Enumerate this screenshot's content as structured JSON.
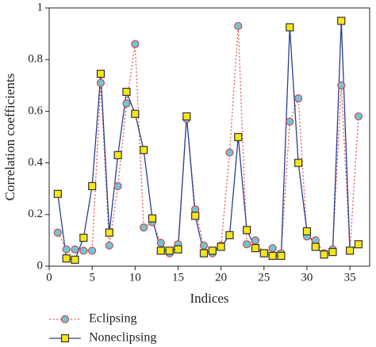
{
  "chart_data": {
    "type": "line",
    "xlabel": "Indices",
    "ylabel": "Correlation coefficients",
    "x": [
      1,
      2,
      3,
      4,
      5,
      6,
      7,
      8,
      9,
      10,
      11,
      12,
      13,
      14,
      15,
      16,
      17,
      18,
      19,
      20,
      21,
      22,
      23,
      24,
      25,
      26,
      27,
      28,
      29,
      30,
      31,
      32,
      33,
      34,
      35,
      36
    ],
    "series": [
      {
        "name": "Eclipsing",
        "color": "#e05a5a",
        "marker_color": "#6ec6d8",
        "marker": "circle",
        "linestyle": "dotted",
        "values": [
          0.13,
          0.065,
          0.065,
          0.06,
          0.06,
          0.71,
          0.08,
          0.31,
          0.63,
          0.86,
          0.15,
          0.17,
          0.09,
          0.05,
          0.085,
          0.57,
          0.22,
          0.08,
          0.05,
          0.08,
          0.44,
          0.93,
          0.085,
          0.1,
          0.05,
          0.07,
          0.05,
          0.56,
          0.65,
          0.115,
          0.1,
          0.05,
          0.065,
          0.7,
          0.06,
          0.58
        ]
      },
      {
        "name": "Noneclipsing",
        "color": "#2b3f8f",
        "marker_color": "#f4e61a",
        "marker": "square",
        "linestyle": "solid",
        "values": [
          0.28,
          0.03,
          0.025,
          0.11,
          0.31,
          0.745,
          0.13,
          0.43,
          0.675,
          0.59,
          0.45,
          0.185,
          0.06,
          0.06,
          0.065,
          0.58,
          0.195,
          0.05,
          0.06,
          0.075,
          0.12,
          0.5,
          0.14,
          0.07,
          0.05,
          0.04,
          0.04,
          0.925,
          0.4,
          0.135,
          0.075,
          0.045,
          0.055,
          0.95,
          0.06,
          0.085
        ]
      }
    ],
    "xlim": [
      0,
      37.3
    ],
    "xticks": [
      0,
      5,
      10,
      15,
      20,
      25,
      30,
      35
    ],
    "ylim": [
      0,
      1
    ],
    "yticks": [
      0,
      0.2,
      0.4,
      0.6,
      0.8,
      1
    ],
    "legend": "bottom-left"
  }
}
